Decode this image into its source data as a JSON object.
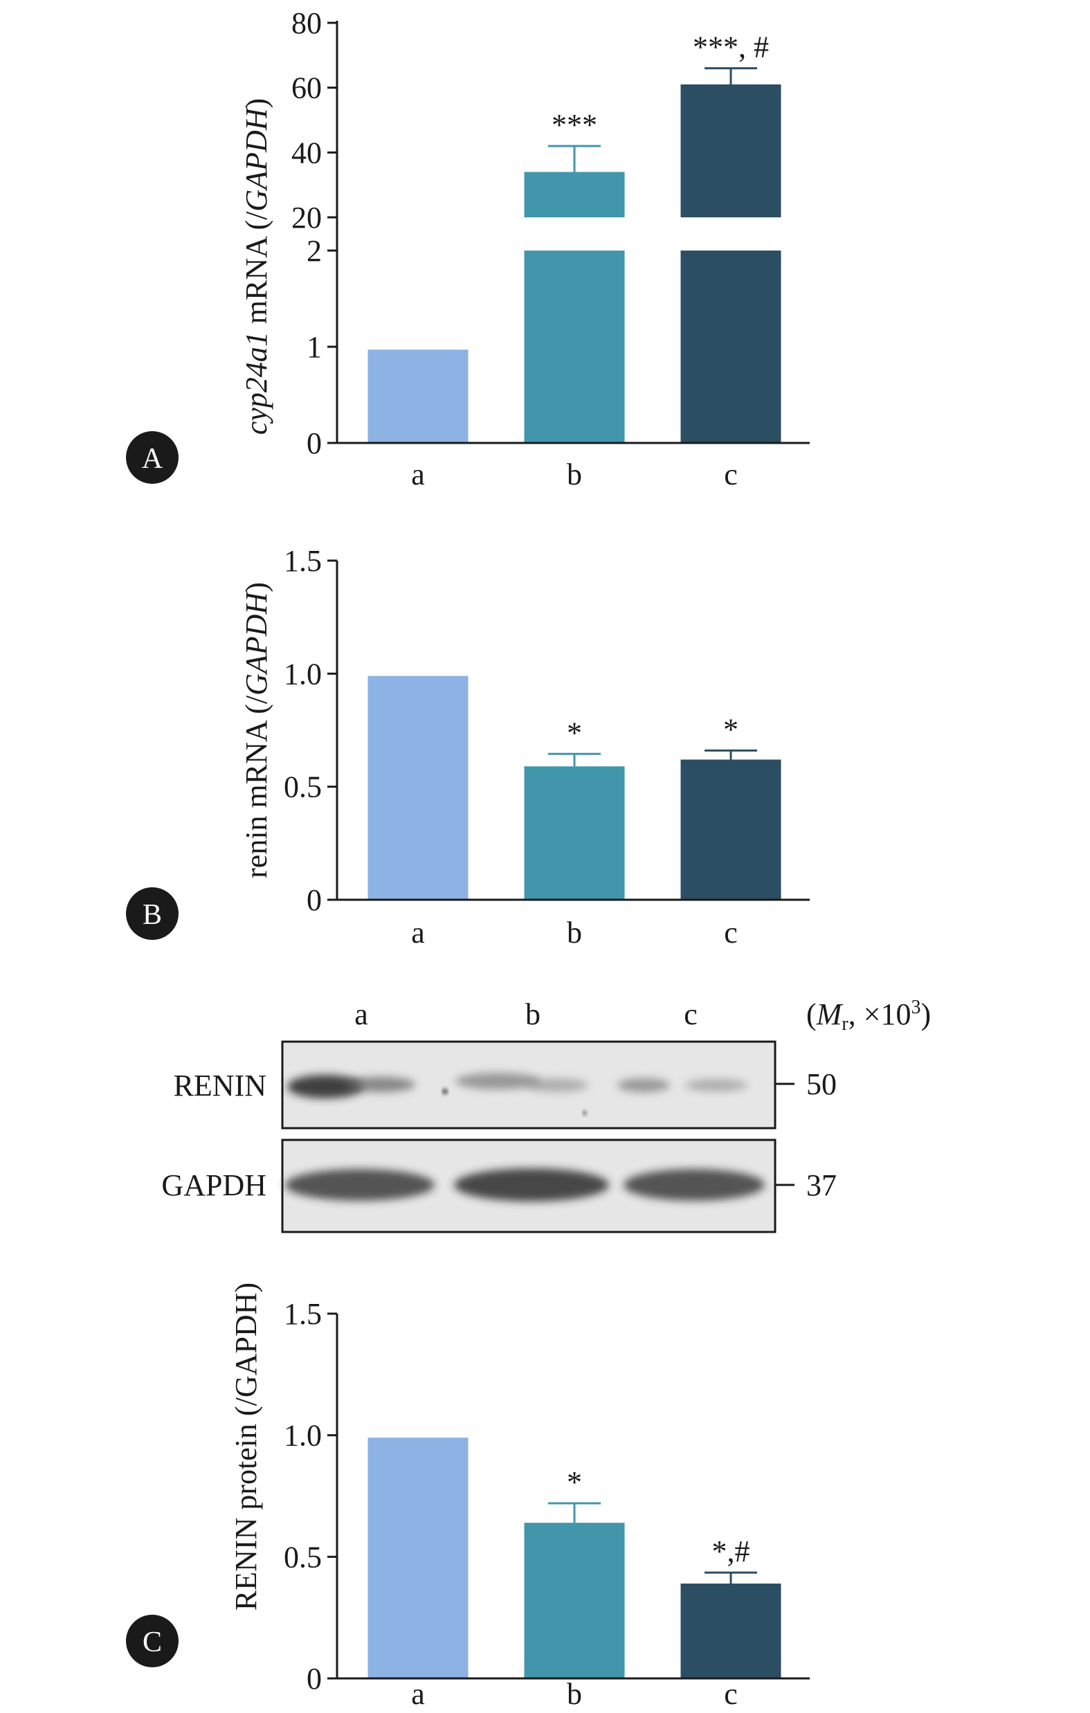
{
  "colors": {
    "a": "#8cb3e3",
    "b": "#4296ac",
    "c": "#2b4e62",
    "axis": "#1a1a1a"
  },
  "chart_data": [
    {
      "panel": "A",
      "type": "bar",
      "categories": [
        "a",
        "b",
        "c"
      ],
      "values": [
        0.97,
        34,
        61
      ],
      "errors": [
        0,
        8,
        5
      ],
      "ylabel_italic": "cyp24a1",
      "ylabel_plain": " mRNA (/",
      "ylabel_italic2": "GAPDH",
      "ylabel_end": ")",
      "axis_break": true,
      "lower_ylim": [
        0,
        2
      ],
      "upper_ylim": [
        20,
        80
      ],
      "lower_ticks": [
        "0",
        "1",
        "2"
      ],
      "upper_ticks": [
        "20",
        "40",
        "60",
        "80"
      ],
      "annotations": [
        "",
        "***",
        "***, #"
      ]
    },
    {
      "panel": "B",
      "type": "bar",
      "categories": [
        "a",
        "b",
        "c"
      ],
      "values": [
        0.99,
        0.59,
        0.62
      ],
      "errors": [
        0,
        0.055,
        0.04
      ],
      "ylabel_plain": "renin mRNA (/",
      "ylabel_italic2": "GAPDH",
      "ylabel_end": ")",
      "ylim": [
        0,
        1.5
      ],
      "ticks": [
        "0",
        "0.5",
        "1.0",
        "1.5"
      ],
      "annotations": [
        "",
        "*",
        "*"
      ]
    },
    {
      "panel": "C",
      "type": "bar",
      "categories": [
        "a",
        "b",
        "c"
      ],
      "values": [
        0.99,
        0.64,
        0.39
      ],
      "errors": [
        0,
        0.08,
        0.045
      ],
      "ylabel_plain": "RENIN protein (/GAPDH)",
      "ylim": [
        0,
        1.5
      ],
      "ticks": [
        "0",
        "0.5",
        "1.0",
        "1.5"
      ],
      "annotations": [
        "",
        "*",
        "*,#"
      ]
    }
  ],
  "panels": {
    "a_label": "A",
    "b_label": "B",
    "c_label": "C"
  },
  "blot": {
    "lanes": [
      "a",
      "b",
      "c"
    ],
    "mr_open": "(",
    "mr_M": "M",
    "mr_sub": "r",
    "mr_rest": ", ×10",
    "mr_sup": "3",
    "mr_close": ")",
    "renin_label": "RENIN",
    "gapdh_label": "GAPDH",
    "renin_mw": "50",
    "gapdh_mw": "37"
  }
}
